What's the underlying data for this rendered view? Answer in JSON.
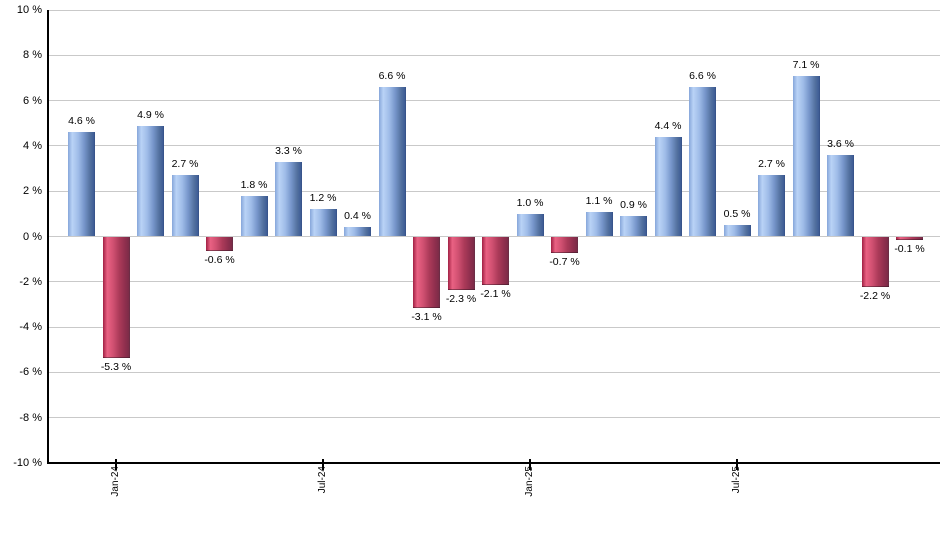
{
  "chart_data": {
    "type": "bar",
    "title": "",
    "description": "Monthly total return bar chart, blue positive / red negative",
    "value_unit": "%",
    "ylim": [
      -10,
      10
    ],
    "ytick_step": 2,
    "ytick_labels": [
      "10 %",
      "8 %",
      "6 %",
      "4 %",
      "2 %",
      "0 %",
      "-2 %",
      "-4 %",
      "-6 %",
      "-8 %",
      "-10 %"
    ],
    "grid": true,
    "legend_position": "none",
    "bar_count": 25,
    "values": [
      4.6,
      -5.3,
      4.9,
      2.7,
      -0.6,
      1.8,
      3.3,
      1.2,
      0.4,
      6.6,
      -3.1,
      -2.3,
      -2.1,
      1.0,
      -0.7,
      1.1,
      0.9,
      4.4,
      6.6,
      0.5,
      2.7,
      7.1,
      3.6,
      -2.2,
      -0.1
    ],
    "data_labels": [
      "4.6 %",
      "-5.3 %",
      "4.9 %",
      "2.7 %",
      "-0.6 %",
      "1.8 %",
      "3.3 %",
      "1.2 %",
      "0.4 %",
      "6.6 %",
      "-3.1 %",
      "-2.3 %",
      "-2.1 %",
      "1.0 %",
      "-0.7 %",
      "1.1 %",
      "0.9 %",
      "4.4 %",
      "6.6 %",
      "0.5 %",
      "2.7 %",
      "7.1 %",
      "3.6 %",
      "-2.2 %",
      "-0.1 %"
    ],
    "x_ticks": [
      {
        "bar_index": 1,
        "label": "Jan-24"
      },
      {
        "bar_index": 7,
        "label": "Jul-24"
      },
      {
        "bar_index": 13,
        "label": "Jan-25"
      },
      {
        "bar_index": 19,
        "label": "Jul-25"
      }
    ],
    "colors": {
      "positive": "#86a6da",
      "positive_highlight": "#bad3f6",
      "positive_shadow": "#3c5b95",
      "negative": "#c94f6f",
      "negative_highlight": "#e96283",
      "negative_shadow": "#7b2b47",
      "gridline": "#c9c9c9",
      "axis": "#000000",
      "label_text": "#000000",
      "background": "#ffffff"
    }
  }
}
